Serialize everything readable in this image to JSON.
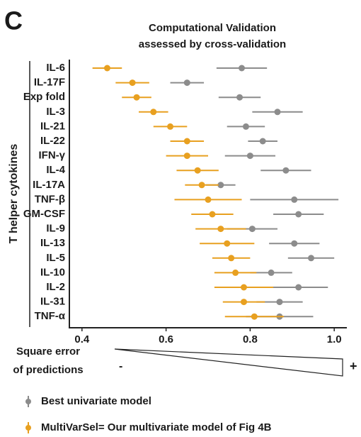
{
  "panel_label": "C",
  "chart_data": {
    "type": "dot-errorbar",
    "title": [
      "Computational Validation",
      "assessed by cross-validation"
    ],
    "y_label": "T helper cytokines",
    "annotation": [
      "Square error",
      "of predictions"
    ],
    "scale_low": "-",
    "scale_high": "+",
    "categories": [
      "IL-6",
      "IL-17F",
      "Exp fold",
      "IL-3",
      "IL-21",
      "IL-22",
      "IFN-γ",
      "IL-4",
      "IL-17A",
      "TNF-β",
      "GM-CSF",
      "IL-9",
      "IL-13",
      "IL-5",
      "IL-10",
      "IL-2",
      "IL-31",
      "TNF-α"
    ],
    "series": [
      {
        "name": "Best univariate model",
        "color": "#8c8c8c",
        "values": [
          0.78,
          0.65,
          0.775,
          0.865,
          0.79,
          0.83,
          0.8,
          0.885,
          0.73,
          0.905,
          0.915,
          0.805,
          0.905,
          0.945,
          0.85,
          0.915,
          0.87,
          0.87
        ],
        "errors": [
          0.06,
          0.04,
          0.05,
          0.06,
          0.045,
          0.035,
          0.06,
          0.06,
          0.035,
          0.105,
          0.06,
          0.06,
          0.06,
          0.055,
          0.05,
          0.07,
          0.055,
          0.08
        ]
      },
      {
        "name": "MultiVarSel= Our multivariate model of Fig 4B",
        "color": "#e8a020",
        "values": [
          0.46,
          0.52,
          0.53,
          0.57,
          0.61,
          0.65,
          0.65,
          0.675,
          0.685,
          0.7,
          0.71,
          0.73,
          0.745,
          0.755,
          0.765,
          0.785,
          0.785,
          0.81
        ],
        "errors": [
          0.035,
          0.04,
          0.035,
          0.035,
          0.04,
          0.04,
          0.05,
          0.05,
          0.04,
          0.08,
          0.05,
          0.06,
          0.065,
          0.045,
          0.05,
          0.07,
          0.05,
          0.07
        ]
      }
    ],
    "xlim": [
      0.37,
      1.03
    ],
    "xticks": [
      {
        "value": 0.4,
        "label": "0.4"
      },
      {
        "value": 0.6,
        "label": "0.6"
      },
      {
        "value": 0.8,
        "label": "0.8"
      },
      {
        "value": 1.0,
        "label": "1.0"
      }
    ]
  }
}
